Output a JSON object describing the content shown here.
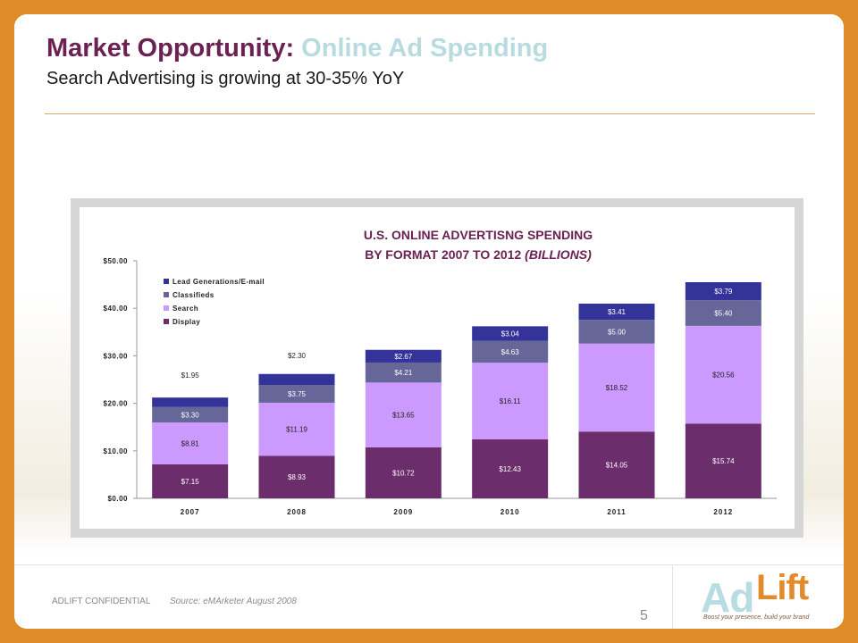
{
  "slide": {
    "title_part1": "Market Opportunity:",
    "title_part2": " Online Ad Spending",
    "subtitle": "Search Advertising is growing at 30-35% YoY",
    "confidential": "ADLIFT CONFIDENTIAL",
    "source": "Source: eMArketer August 2008",
    "page_number": "5"
  },
  "logo": {
    "ad": "Ad",
    "lift": "Lift",
    "tagline": "Boost your presence, build your brand"
  },
  "colors": {
    "display": "#6b2d6b",
    "search": "#cc99ff",
    "classifieds": "#666699",
    "lead": "#333399",
    "title_accent": "#6b2152",
    "title_light": "#b8dbe0",
    "frame": "#e08a2a"
  },
  "chart_data": {
    "type": "bar",
    "stacked": true,
    "title_line1": "U.S. ONLINE ADVERTISNG SPENDING",
    "title_line2": "BY FORMAT 2007 TO 2012 ",
    "title_line2_italic": "(BILLIONS)",
    "categories": [
      "2007",
      "2008",
      "2009",
      "2010",
      "2011",
      "2012"
    ],
    "ylim": [
      0,
      50
    ],
    "yticks": [
      0,
      10,
      20,
      30,
      40,
      50
    ],
    "ytick_labels": [
      "$0.00",
      "$10.00",
      "$20.00",
      "$30.00",
      "$40.00",
      "$50.00"
    ],
    "legend_position": "top-left",
    "series": [
      {
        "name": "Display",
        "color": "#6b2d6b",
        "values": [
          7.15,
          8.93,
          10.72,
          12.43,
          14.05,
          15.74
        ],
        "labels": [
          "$7.15",
          "$8.93",
          "$10.72",
          "$12.43",
          "$14.05",
          "$15.74"
        ]
      },
      {
        "name": "Search",
        "color": "#cc99ff",
        "values": [
          8.81,
          11.19,
          13.65,
          16.11,
          18.52,
          20.56
        ],
        "labels": [
          "$8.81",
          "$11.19",
          "$13.65",
          "$16.11",
          "$18.52",
          "$20.56"
        ]
      },
      {
        "name": "Classifieds",
        "color": "#666699",
        "values": [
          3.3,
          3.75,
          4.21,
          4.63,
          5.0,
          5.4
        ],
        "labels": [
          "$3.30",
          "$3.75",
          "$4.21",
          "$4.63",
          "$5.00",
          "$5.40"
        ]
      },
      {
        "name": "Lead Generations/E-mail",
        "color": "#333399",
        "values": [
          1.95,
          2.3,
          2.67,
          3.04,
          3.41,
          3.79
        ],
        "labels": [
          "$1.95",
          "$2.30",
          "$2.67",
          "$3.04",
          "$3.41",
          "$3.79"
        ]
      }
    ],
    "legend_order": [
      "Lead Generations/E-mail",
      "Classifieds",
      "Search",
      "Display"
    ]
  }
}
